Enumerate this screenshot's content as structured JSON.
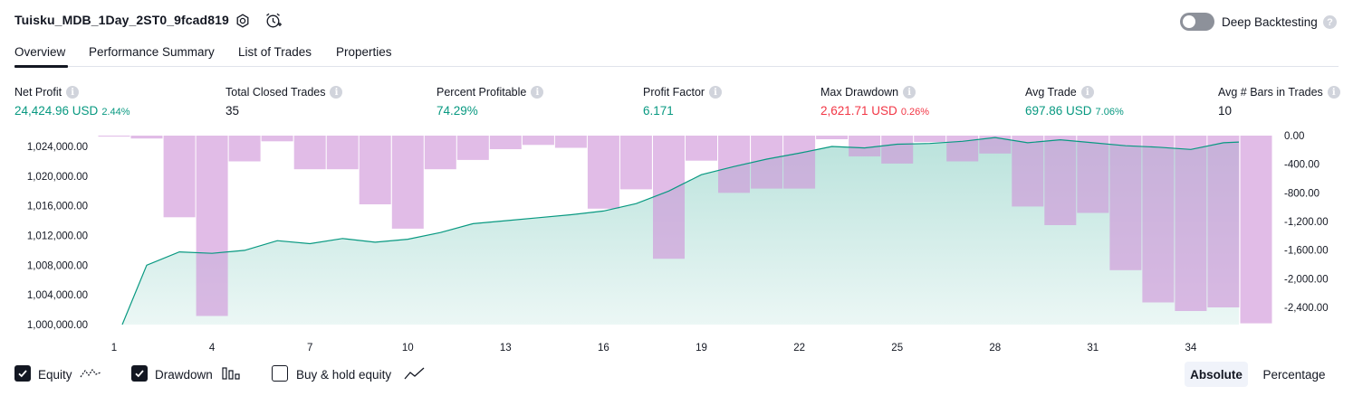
{
  "header": {
    "title": "Tuisku_MDB_1Day_2ST0_9fcad819",
    "deep_backtesting_label": "Deep Backtesting",
    "deep_backtesting_enabled": false,
    "help_glyph": "?"
  },
  "tabs": [
    {
      "label": "Overview",
      "active": true
    },
    {
      "label": "Performance Summary",
      "active": false
    },
    {
      "label": "List of Trades",
      "active": false
    },
    {
      "label": "Properties",
      "active": false
    }
  ],
  "metrics": [
    {
      "label": "Net Profit",
      "value": "24,424.96 USD",
      "pct": "2.44%",
      "tone": "pos"
    },
    {
      "label": "Total Closed Trades",
      "value": "35",
      "pct": "",
      "tone": "neutral"
    },
    {
      "label": "Percent Profitable",
      "value": "74.29%",
      "pct": "",
      "tone": "pos"
    },
    {
      "label": "Profit Factor",
      "value": "6.171",
      "pct": "",
      "tone": "pos"
    },
    {
      "label": "Max Drawdown",
      "value": "2,621.71 USD",
      "pct": "0.26%",
      "tone": "neg"
    },
    {
      "label": "Avg Trade",
      "value": "697.86 USD",
      "pct": "7.06%",
      "tone": "pos"
    },
    {
      "label": "Avg # Bars in Trades",
      "value": "10",
      "pct": "",
      "tone": "neutral"
    }
  ],
  "chart_data": {
    "type": "line+bar",
    "x_ticks": [
      "1",
      "4",
      "7",
      "10",
      "13",
      "16",
      "19",
      "22",
      "25",
      "28",
      "31",
      "34"
    ],
    "x_range": [
      1,
      36
    ],
    "equity": {
      "name": "Equity",
      "axis": "left",
      "x": [
        1,
        2,
        3,
        4,
        5,
        6,
        7,
        8,
        9,
        10,
        11,
        12,
        13,
        14,
        15,
        16,
        17,
        18,
        19,
        20,
        21,
        22,
        23,
        24,
        25,
        26,
        27,
        28,
        29,
        30,
        31,
        32,
        33,
        34,
        35,
        36
      ],
      "values": [
        1000000,
        1008000,
        1009800,
        1009600,
        1010000,
        1011300,
        1010900,
        1011600,
        1011100,
        1011500,
        1012400,
        1013600,
        1014000,
        1014400,
        1014800,
        1015300,
        1016300,
        1018000,
        1020200,
        1021300,
        1022300,
        1023100,
        1024000,
        1023800,
        1024300,
        1024400,
        1024700,
        1025200,
        1024500,
        1024900,
        1024500,
        1024100,
        1023900,
        1023600,
        1024500,
        1024600
      ]
    },
    "drawdown": {
      "name": "Drawdown",
      "axis": "right",
      "x": [
        1,
        2,
        3,
        4,
        5,
        6,
        7,
        8,
        9,
        10,
        11,
        12,
        13,
        14,
        15,
        16,
        17,
        18,
        19,
        20,
        21,
        22,
        23,
        24,
        25,
        26,
        27,
        28,
        29,
        30,
        31,
        32,
        33,
        34,
        35,
        36
      ],
      "values": [
        0,
        -40,
        -1140,
        -2520,
        -360,
        -80,
        -470,
        -470,
        -960,
        -1300,
        -470,
        -340,
        -190,
        -130,
        -170,
        -1020,
        -750,
        -1720,
        -350,
        -800,
        -740,
        -740,
        -50,
        -290,
        -390,
        -90,
        -360,
        -250,
        -990,
        -1250,
        -1080,
        -1880,
        -2330,
        -2450,
        -2400,
        -2621.71
      ]
    },
    "left_axis": {
      "range": [
        1000000,
        1026000
      ],
      "ticks": [
        "1,000,000.00",
        "1,004,000.00",
        "1,008,000.00",
        "1,012,000.00",
        "1,016,000.00",
        "1,020,000.00",
        "1,024,000.00"
      ]
    },
    "right_axis": {
      "range": [
        -2621.71,
        0
      ],
      "ticks": [
        "0.00",
        "-400.00",
        "-800.00",
        "-1,200.00",
        "-1,600.00",
        "-2,000.00",
        "-2,400.00"
      ]
    },
    "colors": {
      "equity_line": "#089981",
      "equity_fill": "#089981",
      "drawdown_bar": "#ce93d8"
    }
  },
  "legend": [
    {
      "label": "Equity",
      "checked": true,
      "icon": "equity-line-icon"
    },
    {
      "label": "Drawdown",
      "checked": true,
      "icon": "drawdown-bars-icon"
    },
    {
      "label": "Buy & hold equity",
      "checked": false,
      "icon": "buy-hold-line-icon"
    }
  ],
  "view_toggle": {
    "absolute": "Absolute",
    "percentage": "Percentage",
    "selected": "absolute"
  }
}
